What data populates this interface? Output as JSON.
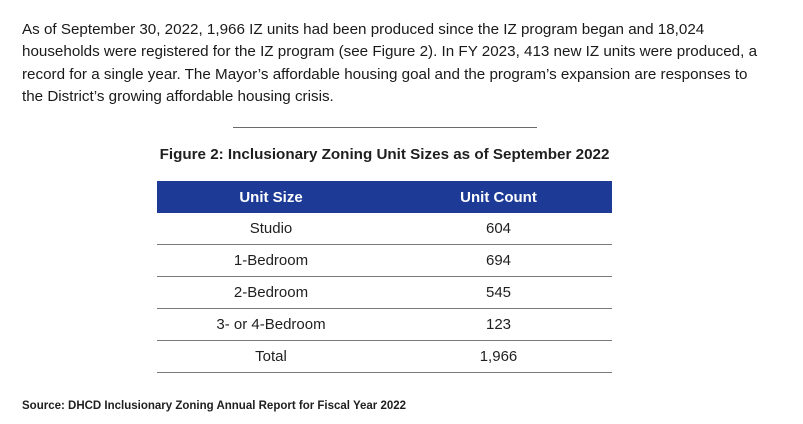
{
  "intro_text": "As of September 30, 2022, 1,966 IZ units had been produced since the IZ program began and 18,024 households were registered for the IZ program (see Figure 2). In FY 2023, 413 new IZ units were produced, a record for a single year. The Mayor’s affordable housing goal and the program’s expansion are responses to the District’s growing affordable housing crisis.",
  "figure": {
    "title": "Figure 2: Inclusionary Zoning Unit Sizes as of September 2022",
    "columns": [
      "Unit Size",
      "Unit Count"
    ],
    "rows": [
      {
        "size": "Studio",
        "count": "604"
      },
      {
        "size": "1-Bedroom",
        "count": "694"
      },
      {
        "size": "2-Bedroom",
        "count": "545"
      },
      {
        "size": "3- or 4-Bedroom",
        "count": "123"
      },
      {
        "size": "Total",
        "count": "1,966"
      }
    ],
    "header_color": "#1c3a96"
  },
  "source": "Source: DHCD Inclusionary Zoning Annual Report for Fiscal Year 2022"
}
